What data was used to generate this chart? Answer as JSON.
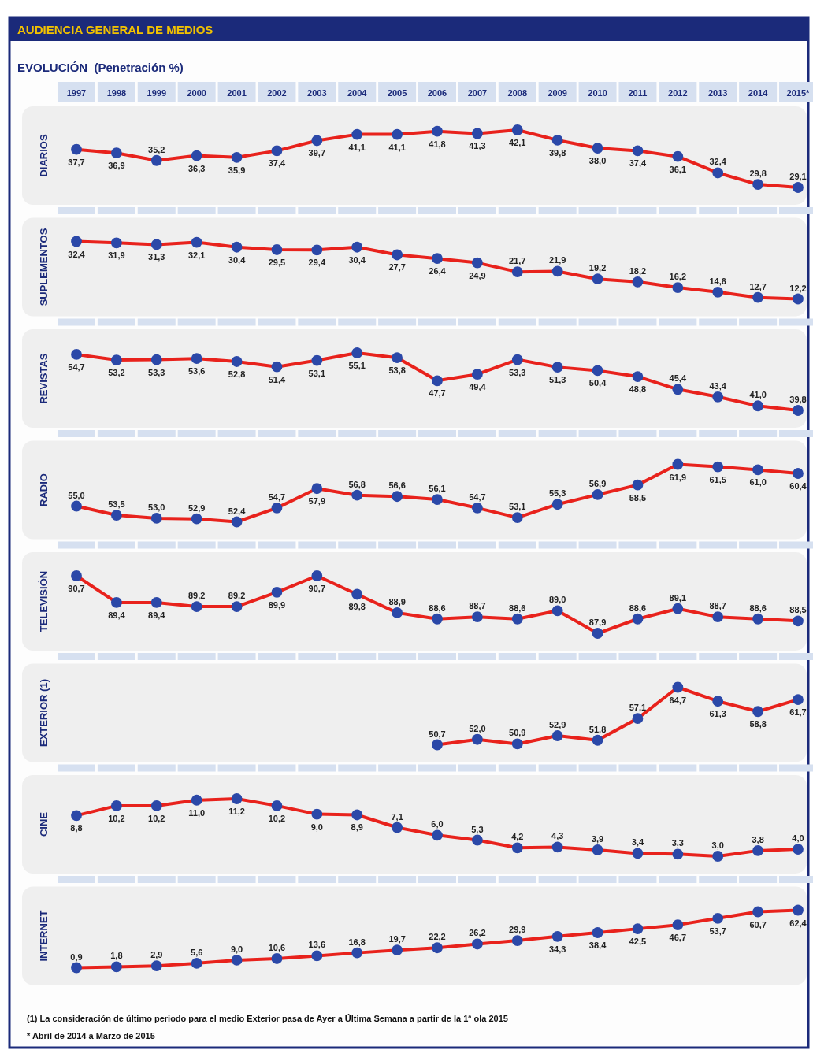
{
  "chart_data": [
    {
      "type": "line",
      "title": "AUDIENCIA GENERAL DE MEDIOS",
      "subtitle": "EVOLUCIÓN  (Penetración %)",
      "ylabel": "DIARIOS",
      "categories": [
        "1997",
        "1998",
        "1999",
        "2000",
        "2001",
        "2002",
        "2003",
        "2004",
        "2005",
        "2006",
        "2007",
        "2008",
        "2009",
        "2010",
        "2011",
        "2012",
        "2013",
        "2014",
        "2015*"
      ],
      "tick_labels": "x",
      "marker": "circle",
      "line_style": "solid",
      "series": [
        {
          "color": "#e8221c",
          "values": [
            37.7,
            36.9,
            35.2,
            36.3,
            35.9,
            37.4,
            39.7,
            41.1,
            41.1,
            41.8,
            41.3,
            42.1,
            39.8,
            38.0,
            37.4,
            36.1,
            32.4,
            29.8,
            29.1
          ],
          "value_labels": [
            "37,7",
            "36,9",
            "35,2",
            "36,3",
            "35,9",
            "37,4",
            "39,7",
            "41,1",
            "41,1",
            "41,8",
            "41,3",
            "42,1",
            "39,8",
            "38,0",
            "37,4",
            "36,1",
            "32,4",
            "29,8",
            "29,1"
          ]
        }
      ]
    },
    {
      "type": "line",
      "ylabel": "SUPLEMENTOS",
      "categories": [
        null,
        null,
        null,
        null,
        null,
        null,
        null,
        null,
        null,
        null,
        null,
        null,
        null,
        null,
        null,
        null,
        null,
        null,
        null
      ],
      "tick_labels": false,
      "marker": "circle",
      "line_style": "solid",
      "series": [
        {
          "color": "#e8221c",
          "values": [
            32.4,
            31.9,
            31.3,
            32.1,
            30.4,
            29.5,
            29.4,
            30.4,
            27.7,
            26.4,
            24.9,
            21.7,
            21.9,
            19.2,
            18.2,
            16.2,
            14.6,
            12.7,
            12.2
          ],
          "value_labels": [
            "32,4",
            "31,9",
            "31,3",
            "32,1",
            "30,4",
            "29,5",
            "29,4",
            "30,4",
            "27,7",
            "26,4",
            "24,9",
            "21,7",
            "21,9",
            "19,2",
            "18,2",
            "16,2",
            "14,6",
            "12,7",
            "12,2"
          ]
        }
      ]
    },
    {
      "type": "line",
      "ylabel": "REVISTAS",
      "categories": [
        null,
        null,
        null,
        null,
        null,
        null,
        null,
        null,
        null,
        null,
        null,
        null,
        null,
        null,
        null,
        null,
        null,
        null,
        null
      ],
      "tick_labels": false,
      "marker": "circle",
      "line_style": "solid",
      "series": [
        {
          "color": "#e8221c",
          "values": [
            54.7,
            53.2,
            53.3,
            53.6,
            52.8,
            51.4,
            53.1,
            55.1,
            53.8,
            47.7,
            49.4,
            53.3,
            51.3,
            50.4,
            48.8,
            45.4,
            43.4,
            41.0,
            39.8
          ],
          "value_labels": [
            "54,7",
            "53,2",
            "53,3",
            "53,6",
            "52,8",
            "51,4",
            "53,1",
            "55,1",
            "53,8",
            "47,7",
            "49,4",
            "53,3",
            "51,3",
            "50,4",
            "48,8",
            "45,4",
            "43,4",
            "41,0",
            "39,8"
          ]
        }
      ]
    },
    {
      "type": "line",
      "ylabel": "RADIO",
      "categories": [
        null,
        null,
        null,
        null,
        null,
        null,
        null,
        null,
        null,
        null,
        null,
        null,
        null,
        null,
        null,
        null,
        null,
        null,
        null
      ],
      "tick_labels": false,
      "marker": "circle",
      "line_style": "solid",
      "series": [
        {
          "color": "#e8221c",
          "values": [
            55.0,
            53.5,
            53.0,
            52.9,
            52.4,
            54.7,
            57.9,
            56.8,
            56.6,
            56.1,
            54.7,
            53.1,
            55.3,
            56.9,
            58.5,
            61.9,
            61.5,
            61.0,
            60.4
          ],
          "value_labels": [
            "55,0",
            "53,5",
            "53,0",
            "52,9",
            "52,4",
            "54,7",
            "57,9",
            "56,8",
            "56,6",
            "56,1",
            "54,7",
            "53,1",
            "55,3",
            "56,9",
            "58,5",
            "61,9",
            "61,5",
            "61,0",
            "60,4"
          ]
        }
      ]
    },
    {
      "type": "line",
      "ylabel": "TELEVISIÓN",
      "categories": [
        null,
        null,
        null,
        null,
        null,
        null,
        null,
        null,
        null,
        null,
        null,
        null,
        null,
        null,
        null,
        null,
        null,
        null,
        null
      ],
      "tick_labels": false,
      "marker": "circle",
      "line_style": "solid",
      "series": [
        {
          "color": "#e8221c",
          "values": [
            90.7,
            89.4,
            89.4,
            89.2,
            89.2,
            89.9,
            90.7,
            89.8,
            88.9,
            88.6,
            88.7,
            88.6,
            89.0,
            87.9,
            88.6,
            89.1,
            88.7,
            88.6,
            88.5
          ],
          "value_labels": [
            "90,7",
            "89,4",
            "89,4",
            "89,2",
            "89,2",
            "89,9",
            "90,7",
            "89,8",
            "88,9",
            "88,6",
            "88,7",
            "88,6",
            "89,0",
            "87,9",
            "88,6",
            "89,1",
            "88,7",
            "88,6",
            "88,5"
          ]
        }
      ]
    },
    {
      "type": "line",
      "ylabel": "EXTERIOR (1)",
      "categories": [
        null,
        null,
        null,
        null,
        null,
        null,
        null,
        null,
        null,
        null,
        null,
        null,
        null,
        null,
        null,
        null,
        null,
        null,
        null
      ],
      "tick_labels": false,
      "marker": "circle",
      "line_style": "solid",
      "series": [
        {
          "color": "#e8221c",
          "values": [
            null,
            null,
            null,
            null,
            null,
            null,
            null,
            null,
            null,
            50.7,
            52.0,
            50.9,
            52.9,
            51.8,
            57.1,
            64.7,
            61.3,
            58.8,
            61.7
          ],
          "value_labels": [
            null,
            null,
            null,
            null,
            null,
            null,
            null,
            null,
            null,
            "50,7",
            "52,0",
            "50,9",
            "52,9",
            "51,8",
            "57,1",
            "64,7",
            "61,3",
            "58,8",
            "61,7"
          ]
        }
      ]
    },
    {
      "type": "line",
      "ylabel": "CINE",
      "categories": [
        null,
        null,
        null,
        null,
        null,
        null,
        null,
        null,
        null,
        null,
        null,
        null,
        null,
        null,
        null,
        null,
        null,
        null,
        null
      ],
      "tick_labels": false,
      "marker": "circle",
      "line_style": "solid",
      "series": [
        {
          "color": "#e8221c",
          "values": [
            8.8,
            10.2,
            10.2,
            11.0,
            11.2,
            10.2,
            9.0,
            8.9,
            7.1,
            6.0,
            5.3,
            4.2,
            4.3,
            3.9,
            3.4,
            3.3,
            3.0,
            3.8,
            4.0
          ],
          "value_labels": [
            "8,8",
            "10,2",
            "10,2",
            "11,0",
            "11,2",
            "10,2",
            "9,0",
            "8,9",
            "7,1",
            "6,0",
            "5,3",
            "4,2",
            "4,3",
            "3,9",
            "3,4",
            "3,3",
            "3,0",
            "3,8",
            "4,0"
          ]
        }
      ]
    },
    {
      "type": "line",
      "ylabel": "INTERNET",
      "categories": [
        null,
        null,
        null,
        null,
        null,
        null,
        null,
        null,
        null,
        null,
        null,
        null,
        null,
        null,
        null,
        null,
        null,
        null,
        null
      ],
      "tick_labels": false,
      "marker": "circle",
      "line_style": "solid",
      "annotations": [
        "(1) La consideración de último periodo  para el medio Exterior pasa de Ayer a Última Semana a partir de la 1ª ola 2015",
        "* Abril de 2014 a Marzo de 2015"
      ],
      "series": [
        {
          "color": "#e8221c",
          "values": [
            0.9,
            1.8,
            2.9,
            5.6,
            9.0,
            10.6,
            13.6,
            16.8,
            19.7,
            22.2,
            26.2,
            29.9,
            34.3,
            38.4,
            42.5,
            46.7,
            53.7,
            60.7,
            62.4
          ],
          "value_labels": [
            "0,9",
            "1,8",
            "2,9",
            "5,6",
            "9,0",
            "10,6",
            "13,6",
            "16,8",
            "19,7",
            "22,2",
            "26,2",
            "29,9",
            "34,3",
            "38,4",
            "42,5",
            "46,7",
            "53,7",
            "60,7",
            "62,4"
          ]
        }
      ]
    }
  ]
}
